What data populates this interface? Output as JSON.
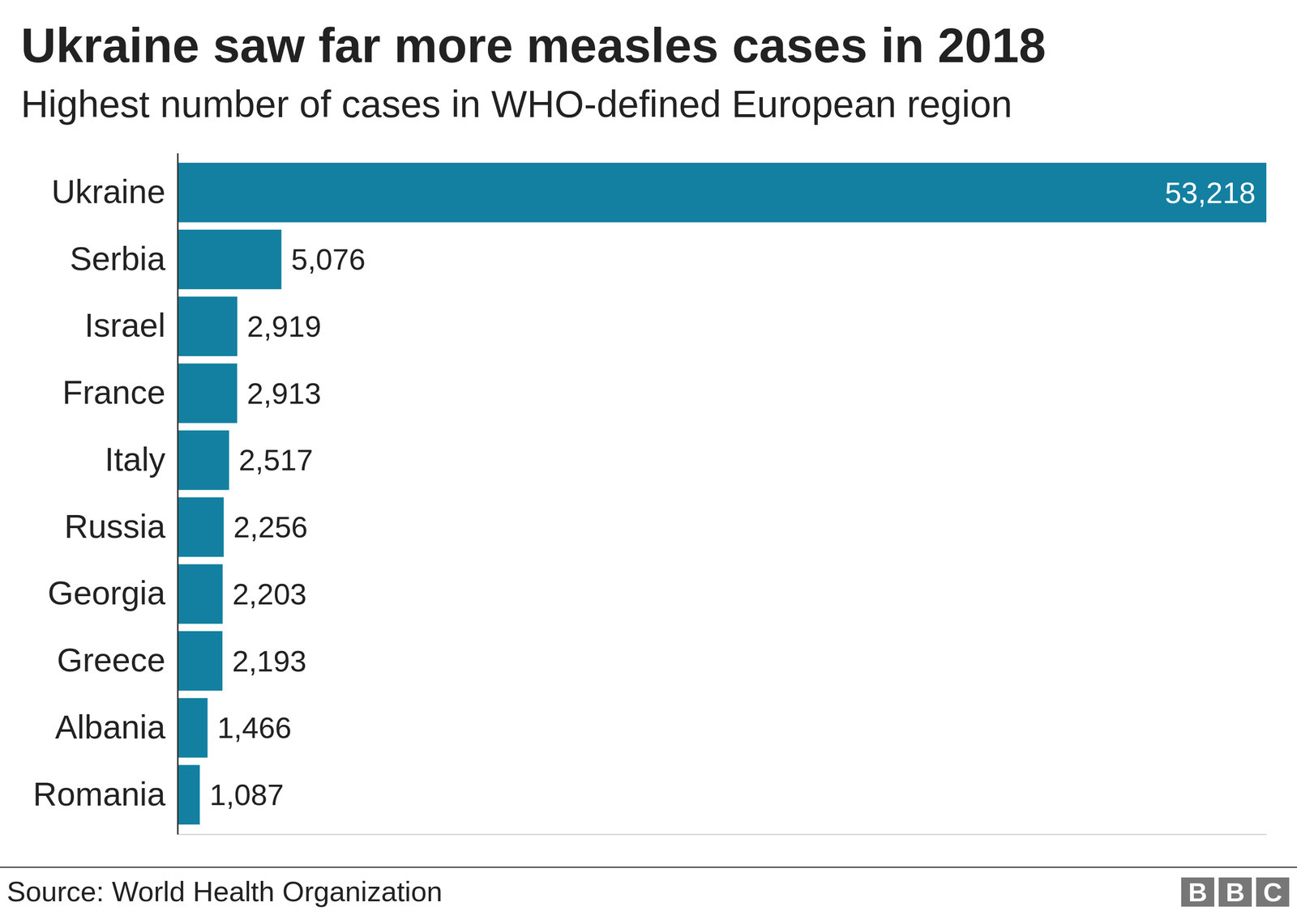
{
  "chart_data": {
    "type": "bar",
    "orientation": "horizontal",
    "title": "Ukraine saw far more measles cases in 2018",
    "subtitle": "Highest number of cases in WHO-defined European region",
    "categories": [
      "Ukraine",
      "Serbia",
      "Israel",
      "France",
      "Italy",
      "Russia",
      "Georgia",
      "Greece",
      "Albania",
      "Romania"
    ],
    "values": [
      53218,
      5076,
      2919,
      2913,
      2517,
      2256,
      2203,
      2193,
      1466,
      1087
    ],
    "value_labels": [
      "53,218",
      "5,076",
      "2,919",
      "2,913",
      "2,517",
      "2,256",
      "2,203",
      "2,193",
      "1,466",
      "1,087"
    ],
    "color": "#1380a1",
    "xlim": [
      0,
      53218
    ],
    "xticks": [],
    "grid": false,
    "data_labels": true,
    "tick_labels": "y",
    "source": "Source: World Health Organization",
    "logo": "BBC"
  }
}
